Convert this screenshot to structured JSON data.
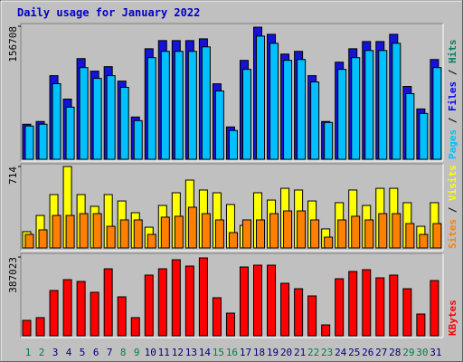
{
  "chart_data": [
    {
      "type": "bar",
      "title": "Daily usage for January 2022",
      "categories": [
        "1",
        "2",
        "3",
        "4",
        "5",
        "6",
        "7",
        "8",
        "9",
        "10",
        "11",
        "12",
        "13",
        "14",
        "15",
        "16",
        "17",
        "18",
        "19",
        "20",
        "21",
        "22",
        "23",
        "24",
        "25",
        "26",
        "27",
        "28",
        "29",
        "30",
        "31"
      ],
      "category_colors": [
        "#008040",
        "#008040",
        "#000080",
        "#000080",
        "#000080",
        "#000080",
        "#000080",
        "#008040",
        "#008040",
        "#000080",
        "#000080",
        "#000080",
        "#000080",
        "#000080",
        "#008040",
        "#008040",
        "#000080",
        "#000080",
        "#000080",
        "#000080",
        "#000080",
        "#008040",
        "#008040",
        "#000080",
        "#000080",
        "#000080",
        "#000080",
        "#000080",
        "#008040",
        "#008040",
        "#000080"
      ],
      "ylim": [
        0,
        156708
      ],
      "yticks": [
        156708
      ],
      "legend": [
        {
          "text": "Pages",
          "color": "#00C0FF"
        },
        {
          "text": " / ",
          "color": "#000000"
        },
        {
          "text": "Files",
          "color": "#0000FF"
        },
        {
          "text": " / ",
          "color": "#000000"
        },
        {
          "text": "Hits",
          "color": "#00805C"
        }
      ],
      "series": [
        {
          "name": "Files",
          "color": "#1414D8",
          "values": [
            41300,
            44500,
            98500,
            70900,
            118600,
            103800,
            109100,
            92100,
            49800,
            130200,
            139800,
            139800,
            139800,
            141900,
            88900,
            38100,
            116500,
            155600,
            147200,
            123900,
            127100,
            98500,
            44500,
            114400,
            130200,
            138700,
            138700,
            147200,
            85800,
            59300,
            117500
          ]
        },
        {
          "name": "Pages",
          "color": "#00C0FF",
          "values": [
            39200,
            41300,
            89000,
            61400,
            108000,
            95300,
            98500,
            84700,
            45500,
            119700,
            127100,
            127100,
            127100,
            132400,
            80500,
            33900,
            105900,
            145100,
            136600,
            116500,
            117500,
            91100,
            43400,
            105900,
            119700,
            128100,
            128100,
            136600,
            77300,
            54000,
            108000
          ]
        }
      ]
    },
    {
      "type": "bar",
      "ylim": [
        0,
        714
      ],
      "yticks": [
        714
      ],
      "legend": [
        {
          "text": "Sites",
          "color": "#FF8000"
        },
        {
          "text": " / ",
          "color": "#000000"
        },
        {
          "text": "Visits",
          "color": "#FFFF00"
        }
      ],
      "series": [
        {
          "name": "Visits",
          "color": "#FFFF00",
          "values": [
            143,
            285,
            468,
            714,
            468,
            365,
            468,
            412,
            309,
            182,
            373,
            484,
            595,
            508,
            484,
            381,
            198,
            484,
            420,
            523,
            508,
            412,
            167,
            397,
            508,
            373,
            523,
            523,
            397,
            190,
            397
          ]
        },
        {
          "name": "Sites",
          "color": "#FF8000",
          "values": [
            119,
            159,
            285,
            285,
            301,
            301,
            190,
            246,
            246,
            119,
            270,
            278,
            357,
            301,
            246,
            135,
            246,
            246,
            301,
            325,
            325,
            246,
            95,
            246,
            278,
            246,
            301,
            301,
            214,
            119,
            214
          ]
        }
      ]
    },
    {
      "type": "bar",
      "ylim": [
        0,
        387023
      ],
      "yticks": [
        387023
      ],
      "legend": [
        {
          "text": "KBytes",
          "color": "#FF0000"
        }
      ],
      "series": [
        {
          "name": "KBytes",
          "color": "#FF0000",
          "values": [
            75600,
            89000,
            222500,
            275800,
            266900,
            213600,
            329200,
            191300,
            89000,
            298100,
            329200,
            373700,
            342600,
            382600,
            186900,
            111200,
            338100,
            347000,
            347000,
            258000,
            231300,
            195800,
            53400,
            280300,
            315900,
            324800,
            284700,
            298100,
            231300,
            106800,
            271400
          ]
        }
      ]
    }
  ]
}
